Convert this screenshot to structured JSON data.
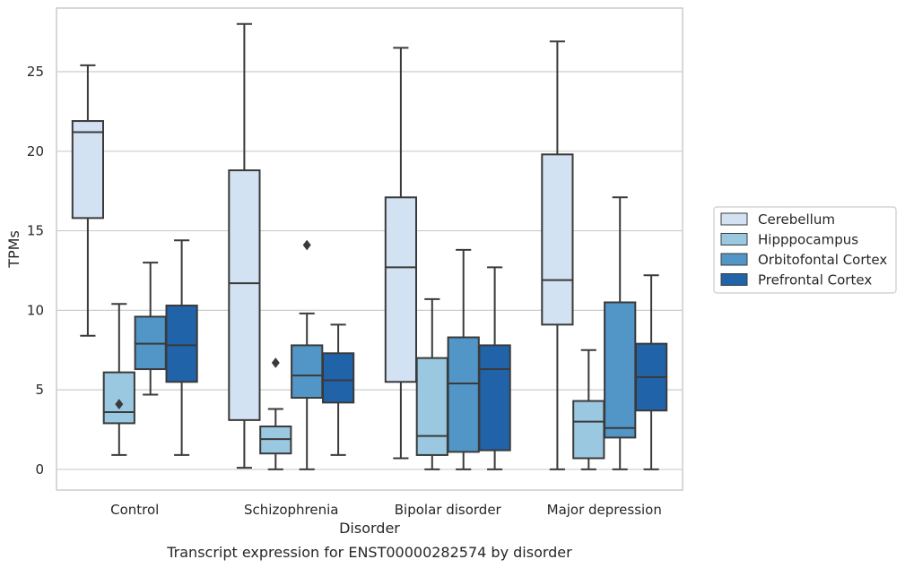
{
  "caption": "Transcript expression for ENST00000282574 by disorder",
  "chart_data": {
    "type": "box",
    "xlabel": "Disorder",
    "ylabel": "TPMs",
    "ylim": [
      -1.3,
      29.0
    ],
    "yticks": [
      0,
      5,
      10,
      15,
      20,
      25
    ],
    "grid": "horizontal",
    "legend_position": "right",
    "categories": [
      "Control",
      "Schizophrenia",
      "Bipolar disorder",
      "Major depression"
    ],
    "series": [
      {
        "name": "Cerebellum",
        "color": "#d2e2f2",
        "boxes": [
          {
            "whisker_low": 8.4,
            "q1": 15.8,
            "median": 21.2,
            "q3": 21.9,
            "whisker_high": 25.4,
            "outliers": []
          },
          {
            "whisker_low": 0.1,
            "q1": 3.1,
            "median": 11.7,
            "q3": 18.8,
            "whisker_high": 28.0,
            "outliers": []
          },
          {
            "whisker_low": 0.7,
            "q1": 5.5,
            "median": 12.7,
            "q3": 17.1,
            "whisker_high": 26.5,
            "outliers": []
          },
          {
            "whisker_low": 0.0,
            "q1": 9.1,
            "median": 11.9,
            "q3": 19.8,
            "whisker_high": 26.9,
            "outliers": []
          }
        ]
      },
      {
        "name": "Hipppocampus",
        "color": "#9ac8e0",
        "boxes": [
          {
            "whisker_low": 0.9,
            "q1": 2.9,
            "median": 3.6,
            "q3": 6.1,
            "whisker_high": 10.4,
            "outliers": [
              4.1
            ]
          },
          {
            "whisker_low": 0.0,
            "q1": 1.0,
            "median": 1.9,
            "q3": 2.7,
            "whisker_high": 3.8,
            "outliers": [
              6.7
            ]
          },
          {
            "whisker_low": 0.0,
            "q1": 0.9,
            "median": 2.1,
            "q3": 7.0,
            "whisker_high": 10.7,
            "outliers": []
          },
          {
            "whisker_low": 0.0,
            "q1": 0.7,
            "median": 3.0,
            "q3": 4.3,
            "whisker_high": 7.5,
            "outliers": []
          }
        ]
      },
      {
        "name": "Orbitofontal Cortex",
        "color": "#5196c6",
        "boxes": [
          {
            "whisker_low": 4.7,
            "q1": 6.3,
            "median": 7.9,
            "q3": 9.6,
            "whisker_high": 13.0,
            "outliers": []
          },
          {
            "whisker_low": 0.0,
            "q1": 4.5,
            "median": 5.9,
            "q3": 7.8,
            "whisker_high": 9.8,
            "outliers": [
              14.1
            ]
          },
          {
            "whisker_low": 0.0,
            "q1": 1.1,
            "median": 5.4,
            "q3": 8.3,
            "whisker_high": 13.8,
            "outliers": []
          },
          {
            "whisker_low": 0.0,
            "q1": 2.0,
            "median": 2.6,
            "q3": 10.5,
            "whisker_high": 17.1,
            "outliers": []
          }
        ]
      },
      {
        "name": "Prefrontal Cortex",
        "color": "#2163a9",
        "boxes": [
          {
            "whisker_low": 0.9,
            "q1": 5.5,
            "median": 7.8,
            "q3": 10.3,
            "whisker_high": 14.4,
            "outliers": []
          },
          {
            "whisker_low": 0.9,
            "q1": 4.2,
            "median": 5.6,
            "q3": 7.3,
            "whisker_high": 9.1,
            "outliers": []
          },
          {
            "whisker_low": 0.0,
            "q1": 1.2,
            "median": 6.3,
            "q3": 7.8,
            "whisker_high": 12.7,
            "outliers": []
          },
          {
            "whisker_low": 0.0,
            "q1": 3.7,
            "median": 5.8,
            "q3": 7.9,
            "whisker_high": 12.2,
            "outliers": []
          }
        ]
      }
    ]
  }
}
